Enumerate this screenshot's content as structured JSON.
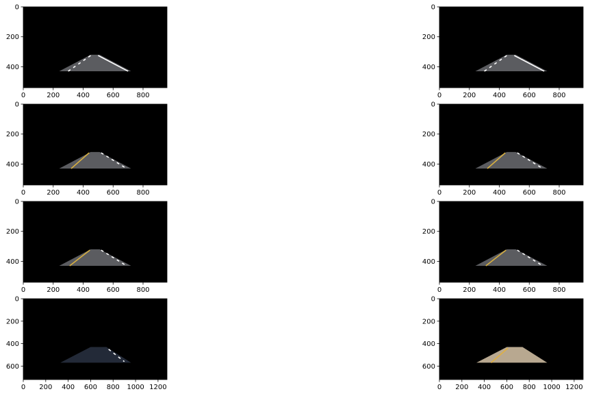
{
  "chart_data": [
    {
      "type": "image",
      "row": 0,
      "col": 0,
      "image": "masked road, white lane lines",
      "xlim": [
        0,
        960
      ],
      "ylim": [
        540,
        0
      ],
      "xticks": [
        "0",
        "200",
        "400",
        "600",
        "800"
      ],
      "yticks": [
        "0",
        "200",
        "400"
      ],
      "roi": {
        "top": [
          [
            450,
            320
          ],
          [
            510,
            320
          ]
        ],
        "bottom": [
          [
            240,
            430
          ],
          [
            720,
            430
          ]
        ]
      },
      "lanes": [
        {
          "color": "#ffffff",
          "dashed": true,
          "p1": [
            300,
            430
          ],
          "p2": [
            450,
            325
          ]
        },
        {
          "color": "#ffffff",
          "dashed": false,
          "p1": [
            500,
            325
          ],
          "p2": [
            700,
            430
          ]
        }
      ]
    },
    {
      "type": "image",
      "row": 0,
      "col": 1,
      "image": "masked road, white lane lines",
      "xlim": [
        0,
        960
      ],
      "ylim": [
        540,
        0
      ],
      "xticks": [
        "0",
        "200",
        "400",
        "600",
        "800"
      ],
      "yticks": [
        "0",
        "200",
        "400"
      ],
      "roi": {
        "top": [
          [
            450,
            320
          ],
          [
            510,
            320
          ]
        ],
        "bottom": [
          [
            240,
            430
          ],
          [
            720,
            430
          ]
        ]
      },
      "lanes": [
        {
          "color": "#ffffff",
          "dashed": true,
          "p1": [
            300,
            430
          ],
          "p2": [
            450,
            325
          ]
        },
        {
          "color": "#ffffff",
          "dashed": false,
          "p1": [
            500,
            325
          ],
          "p2": [
            700,
            430
          ]
        }
      ]
    },
    {
      "type": "image",
      "row": 1,
      "col": 0,
      "image": "masked road, yellow left lane, dashed white right lane",
      "xlim": [
        0,
        960
      ],
      "ylim": [
        540,
        0
      ],
      "xticks": [
        "0",
        "200",
        "400",
        "600",
        "800"
      ],
      "yticks": [
        "0",
        "200",
        "400"
      ],
      "roi": {
        "top": [
          [
            450,
            320
          ],
          [
            510,
            320
          ]
        ],
        "bottom": [
          [
            240,
            430
          ],
          [
            720,
            430
          ]
        ]
      },
      "lanes": [
        {
          "color": "#d8b040",
          "dashed": false,
          "p1": [
            320,
            430
          ],
          "p2": [
            440,
            325
          ]
        },
        {
          "color": "#ffffff",
          "dashed": true,
          "p1": [
            520,
            325
          ],
          "p2": [
            690,
            430
          ]
        }
      ]
    },
    {
      "type": "image",
      "row": 1,
      "col": 1,
      "image": "masked road, yellow left lane, dashed white right lane",
      "xlim": [
        0,
        960
      ],
      "ylim": [
        540,
        0
      ],
      "xticks": [
        "0",
        "200",
        "400",
        "600",
        "800"
      ],
      "yticks": [
        "0",
        "200",
        "400"
      ],
      "roi": {
        "top": [
          [
            450,
            320
          ],
          [
            510,
            320
          ]
        ],
        "bottom": [
          [
            240,
            430
          ],
          [
            720,
            430
          ]
        ]
      },
      "lanes": [
        {
          "color": "#d8b040",
          "dashed": false,
          "p1": [
            320,
            430
          ],
          "p2": [
            440,
            325
          ]
        },
        {
          "color": "#ffffff",
          "dashed": true,
          "p1": [
            520,
            325
          ],
          "p2": [
            690,
            430
          ]
        }
      ]
    },
    {
      "type": "image",
      "row": 2,
      "col": 0,
      "image": "masked road, yellow left lane, dashed white right lane",
      "xlim": [
        0,
        960
      ],
      "ylim": [
        540,
        0
      ],
      "xticks": [
        "0",
        "200",
        "400",
        "600",
        "800"
      ],
      "yticks": [
        "0",
        "200",
        "400"
      ],
      "roi": {
        "top": [
          [
            450,
            320
          ],
          [
            510,
            320
          ]
        ],
        "bottom": [
          [
            240,
            430
          ],
          [
            720,
            430
          ]
        ]
      },
      "lanes": [
        {
          "color": "#d8b040",
          "dashed": false,
          "p1": [
            310,
            430
          ],
          "p2": [
            445,
            325
          ]
        },
        {
          "color": "#ffffff",
          "dashed": true,
          "p1": [
            520,
            325
          ],
          "p2": [
            690,
            430
          ]
        }
      ]
    },
    {
      "type": "image",
      "row": 2,
      "col": 1,
      "image": "masked road, yellow left lane, dashed white right lane",
      "xlim": [
        0,
        960
      ],
      "ylim": [
        540,
        0
      ],
      "xticks": [
        "0",
        "200",
        "400",
        "600",
        "800"
      ],
      "yticks": [
        "0",
        "200",
        "400"
      ],
      "roi": {
        "top": [
          [
            450,
            320
          ],
          [
            510,
            320
          ]
        ],
        "bottom": [
          [
            240,
            430
          ],
          [
            720,
            430
          ]
        ]
      },
      "lanes": [
        {
          "color": "#d8b040",
          "dashed": false,
          "p1": [
            310,
            430
          ],
          "p2": [
            445,
            325
          ]
        },
        {
          "color": "#ffffff",
          "dashed": true,
          "p1": [
            520,
            325
          ],
          "p2": [
            690,
            430
          ]
        }
      ]
    },
    {
      "type": "image",
      "row": 3,
      "col": 0,
      "image": "masked dark road, dashed white right lane",
      "xlim": [
        0,
        1280
      ],
      "ylim": [
        720,
        0
      ],
      "xticks": [
        "0",
        "200",
        "400",
        "600",
        "800",
        "1000",
        "1200"
      ],
      "yticks": [
        "0",
        "200",
        "400",
        "600"
      ],
      "roi": {
        "top": [
          [
            600,
            430
          ],
          [
            740,
            430
          ]
        ],
        "bottom": [
          [
            330,
            570
          ],
          [
            960,
            570
          ]
        ]
      },
      "roi_color": "#232a38",
      "lanes": [
        {
          "color": "#ffffff",
          "dashed": true,
          "p1": [
            760,
            450
          ],
          "p2": [
            900,
            560
          ]
        }
      ]
    },
    {
      "type": "image",
      "row": 3,
      "col": 1,
      "image": "masked bright road, yellow left lane",
      "xlim": [
        0,
        1280
      ],
      "ylim": [
        720,
        0
      ],
      "xticks": [
        "0",
        "200",
        "400",
        "600",
        "800",
        "1000",
        "1200"
      ],
      "yticks": [
        "0",
        "200",
        "400",
        "600"
      ],
      "roi": {
        "top": [
          [
            600,
            430
          ],
          [
            740,
            430
          ]
        ],
        "bottom": [
          [
            330,
            570
          ],
          [
            960,
            570
          ]
        ]
      },
      "roi_color": "#b8a890",
      "lanes": [
        {
          "color": "#e0b040",
          "dashed": false,
          "p1": [
            460,
            570
          ],
          "p2": [
            610,
            440
          ]
        }
      ]
    }
  ]
}
